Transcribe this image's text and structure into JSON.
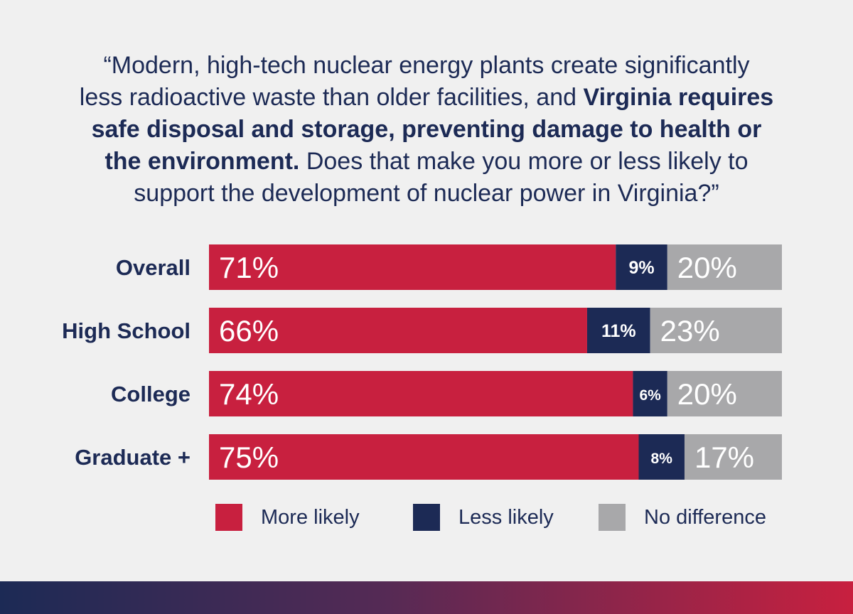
{
  "question": {
    "line1": "“Modern, high-tech nuclear energy plants create significantly",
    "line2a": "less radioactive waste than older facilities, and ",
    "line2b": "Virginia requires",
    "line3": "safe disposal and storage, preventing damage to health or",
    "line4a": "the environment.",
    "line4b": " Does that make you more or less likely to",
    "line5": "support the development of nuclear power in Virginia?”"
  },
  "colors": {
    "more": "#c8203f",
    "less": "#1c2a55",
    "nodiff": "#a8a8aa",
    "text": "#1c2a55"
  },
  "chart_data": {
    "type": "bar",
    "orientation": "horizontal",
    "stacked": true,
    "categories": [
      "Overall",
      "High School",
      "College",
      "Graduate +"
    ],
    "series": [
      {
        "name": "More likely",
        "values": [
          71,
          66,
          74,
          75
        ]
      },
      {
        "name": "Less likely",
        "values": [
          9,
          11,
          6,
          8
        ]
      },
      {
        "name": "No difference",
        "values": [
          20,
          23,
          20,
          17
        ]
      }
    ],
    "data_labels": {
      "More likely": [
        "71%",
        "66%",
        "74%",
        "75%"
      ],
      "Less likely": [
        "9%",
        "11%",
        "6%",
        "8%"
      ],
      "No difference": [
        "20%",
        "23%",
        "20%",
        "17%"
      ]
    },
    "xlim": [
      0,
      100
    ],
    "grid": false,
    "legend_position": "bottom"
  }
}
